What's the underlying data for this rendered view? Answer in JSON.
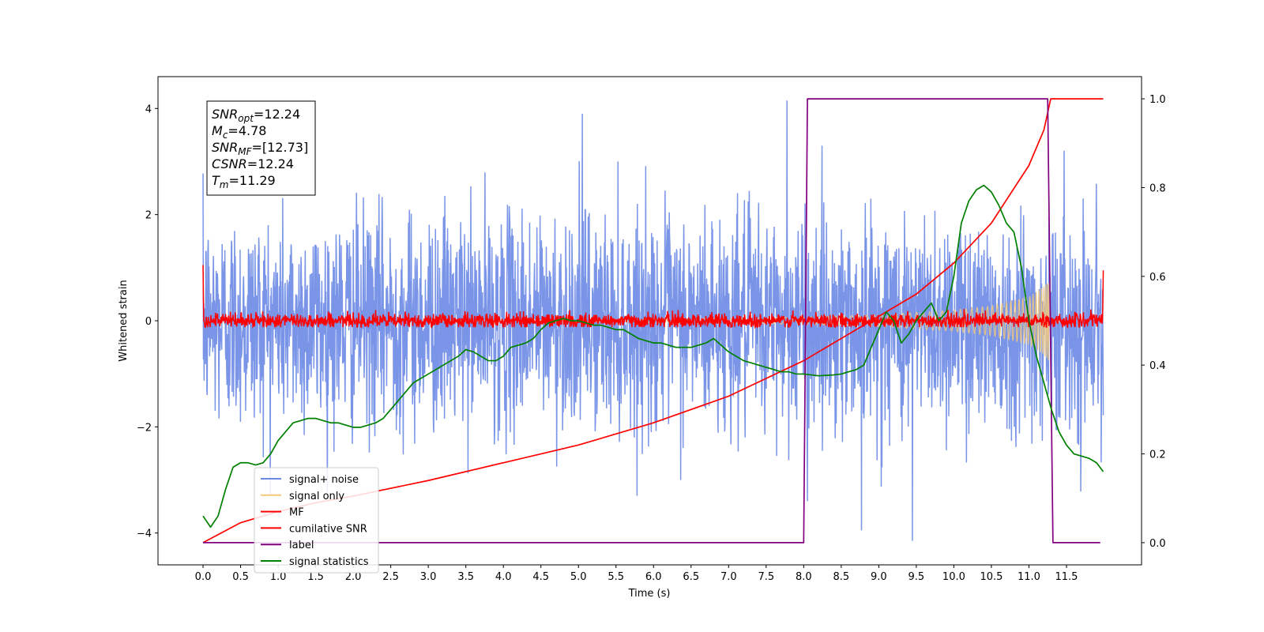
{
  "chart_data": {
    "type": "line",
    "xlabel": "Time (s)",
    "ylabel": "Whitened strain",
    "xlim": [
      -0.6,
      12.5
    ],
    "ylim": [
      -4.6,
      4.6
    ],
    "ylim_right": [
      -0.05,
      1.05
    ],
    "xticks": [
      "0.0",
      "0.5",
      "1.0",
      "1.5",
      "2.0",
      "2.5",
      "3.0",
      "3.5",
      "4.0",
      "4.5",
      "5.0",
      "5.5",
      "6.0",
      "6.5",
      "7.0",
      "7.5",
      "8.0",
      "8.5",
      "9.0",
      "9.5",
      "10.0",
      "10.5",
      "11.0",
      "11.5"
    ],
    "yticks_left": [
      "4",
      "2",
      "0",
      "−2",
      "−4"
    ],
    "yticks_right": [
      "1.0",
      "0.8",
      "0.6",
      "0.4",
      "0.2",
      "0.0"
    ],
    "grid": false,
    "legend_position": "lower-left",
    "annotation": [
      {
        "sym": "SNR",
        "sub": "opt",
        "value": "=12.24"
      },
      {
        "sym": "M",
        "sub": "c",
        "value": "=4.78"
      },
      {
        "sym": "SNR",
        "sub": "MF",
        "value": "=[12.73]"
      },
      {
        "sym": "CSNR",
        "sub": "",
        "value": "=12.24"
      },
      {
        "sym": "T",
        "sub": "m",
        "value": "=11.29"
      }
    ],
    "series": [
      {
        "name": "signal+ noise",
        "axis": "left",
        "color": "#6b8ae6",
        "x_range": [
          0.0,
          11.99
        ],
        "noise_std": 1.0,
        "peak_values": [
          [
            7.78,
            4.15
          ],
          [
            5.05,
            3.9
          ],
          [
            8.05,
            -3.4
          ],
          [
            9.45,
            -4.15
          ],
          [
            8.77,
            -3.95
          ]
        ]
      },
      {
        "name": "signal only",
        "axis": "left",
        "color": "#f5c97a",
        "x_range": [
          0.0,
          11.29
        ],
        "envelope": [
          [
            7.0,
            0.05
          ],
          [
            8.0,
            0.07
          ],
          [
            9.0,
            0.11
          ],
          [
            10.0,
            0.2
          ],
          [
            10.5,
            0.28
          ],
          [
            11.0,
            0.45
          ],
          [
            11.2,
            0.65
          ],
          [
            11.29,
            0.8
          ]
        ]
      },
      {
        "name": "MF",
        "axis": "left",
        "color": "#ff0000",
        "x_range": [
          0.0,
          11.99
        ],
        "baseline": 0.0,
        "noise_std": 0.07,
        "edge_values": [
          [
            0.0,
            1.05
          ],
          [
            11.99,
            0.95
          ]
        ]
      },
      {
        "name": "cumilative SNR",
        "axis": "right",
        "color": "#ff0000",
        "x": [
          0.0,
          0.5,
          1.0,
          1.5,
          2.0,
          3.0,
          4.0,
          5.0,
          6.0,
          7.0,
          8.0,
          9.0,
          9.5,
          10.0,
          10.5,
          11.0,
          11.2,
          11.29,
          11.99
        ],
        "values": [
          0.0,
          0.045,
          0.07,
          0.09,
          0.105,
          0.14,
          0.18,
          0.22,
          0.27,
          0.33,
          0.41,
          0.51,
          0.56,
          0.63,
          0.72,
          0.85,
          0.93,
          1.0,
          1.0
        ]
      },
      {
        "name": "label",
        "axis": "right",
        "color": "#800080",
        "x": [
          0.0,
          8.0,
          8.05,
          11.25,
          11.32,
          11.95
        ],
        "values": [
          0.0,
          0.0,
          1.0,
          1.0,
          0.0,
          0.0
        ]
      },
      {
        "name": "signal statistics",
        "axis": "right",
        "color": "#008000",
        "x": [
          0.0,
          0.1,
          0.2,
          0.3,
          0.4,
          0.5,
          0.6,
          0.7,
          0.8,
          0.9,
          1.0,
          1.1,
          1.2,
          1.3,
          1.4,
          1.5,
          1.6,
          1.7,
          1.8,
          1.9,
          2.0,
          2.1,
          2.2,
          2.3,
          2.4,
          2.5,
          2.6,
          2.7,
          2.8,
          2.9,
          3.0,
          3.1,
          3.2,
          3.3,
          3.4,
          3.5,
          3.6,
          3.7,
          3.8,
          3.9,
          4.0,
          4.1,
          4.2,
          4.3,
          4.4,
          4.5,
          4.6,
          4.7,
          4.8,
          4.9,
          5.0,
          5.1,
          5.2,
          5.3,
          5.4,
          5.5,
          5.6,
          5.7,
          5.8,
          5.9,
          6.0,
          6.1,
          6.2,
          6.3,
          6.4,
          6.5,
          6.6,
          6.7,
          6.8,
          6.9,
          7.0,
          7.1,
          7.2,
          7.3,
          7.4,
          7.5,
          7.6,
          7.7,
          7.8,
          7.9,
          8.0,
          8.1,
          8.2,
          8.3,
          8.4,
          8.5,
          8.6,
          8.7,
          8.8,
          8.9,
          9.0,
          9.1,
          9.2,
          9.3,
          9.4,
          9.5,
          9.6,
          9.7,
          9.8,
          9.9,
          10.0,
          10.1,
          10.2,
          10.3,
          10.4,
          10.5,
          10.6,
          10.7,
          10.8,
          10.9,
          11.0,
          11.1,
          11.2,
          11.3,
          11.4,
          11.5,
          11.6,
          11.7,
          11.8,
          11.9,
          11.99
        ],
        "values": [
          0.06,
          0.035,
          0.06,
          0.12,
          0.17,
          0.18,
          0.18,
          0.175,
          0.18,
          0.2,
          0.23,
          0.25,
          0.27,
          0.275,
          0.28,
          0.28,
          0.275,
          0.27,
          0.27,
          0.265,
          0.26,
          0.26,
          0.265,
          0.27,
          0.28,
          0.3,
          0.32,
          0.34,
          0.36,
          0.37,
          0.38,
          0.39,
          0.4,
          0.41,
          0.42,
          0.435,
          0.43,
          0.42,
          0.41,
          0.41,
          0.42,
          0.44,
          0.445,
          0.45,
          0.46,
          0.48,
          0.495,
          0.5,
          0.505,
          0.5,
          0.5,
          0.495,
          0.49,
          0.49,
          0.485,
          0.48,
          0.48,
          0.47,
          0.46,
          0.455,
          0.45,
          0.45,
          0.445,
          0.44,
          0.44,
          0.44,
          0.445,
          0.45,
          0.46,
          0.445,
          0.43,
          0.42,
          0.41,
          0.405,
          0.4,
          0.395,
          0.39,
          0.385,
          0.385,
          0.38,
          0.38,
          0.378,
          0.376,
          0.377,
          0.378,
          0.38,
          0.385,
          0.39,
          0.4,
          0.44,
          0.48,
          0.52,
          0.5,
          0.45,
          0.47,
          0.5,
          0.52,
          0.54,
          0.5,
          0.52,
          0.6,
          0.72,
          0.77,
          0.795,
          0.805,
          0.79,
          0.76,
          0.72,
          0.7,
          0.62,
          0.5,
          0.42,
          0.36,
          0.3,
          0.25,
          0.22,
          0.2,
          0.195,
          0.19,
          0.18,
          0.16
        ]
      }
    ]
  }
}
